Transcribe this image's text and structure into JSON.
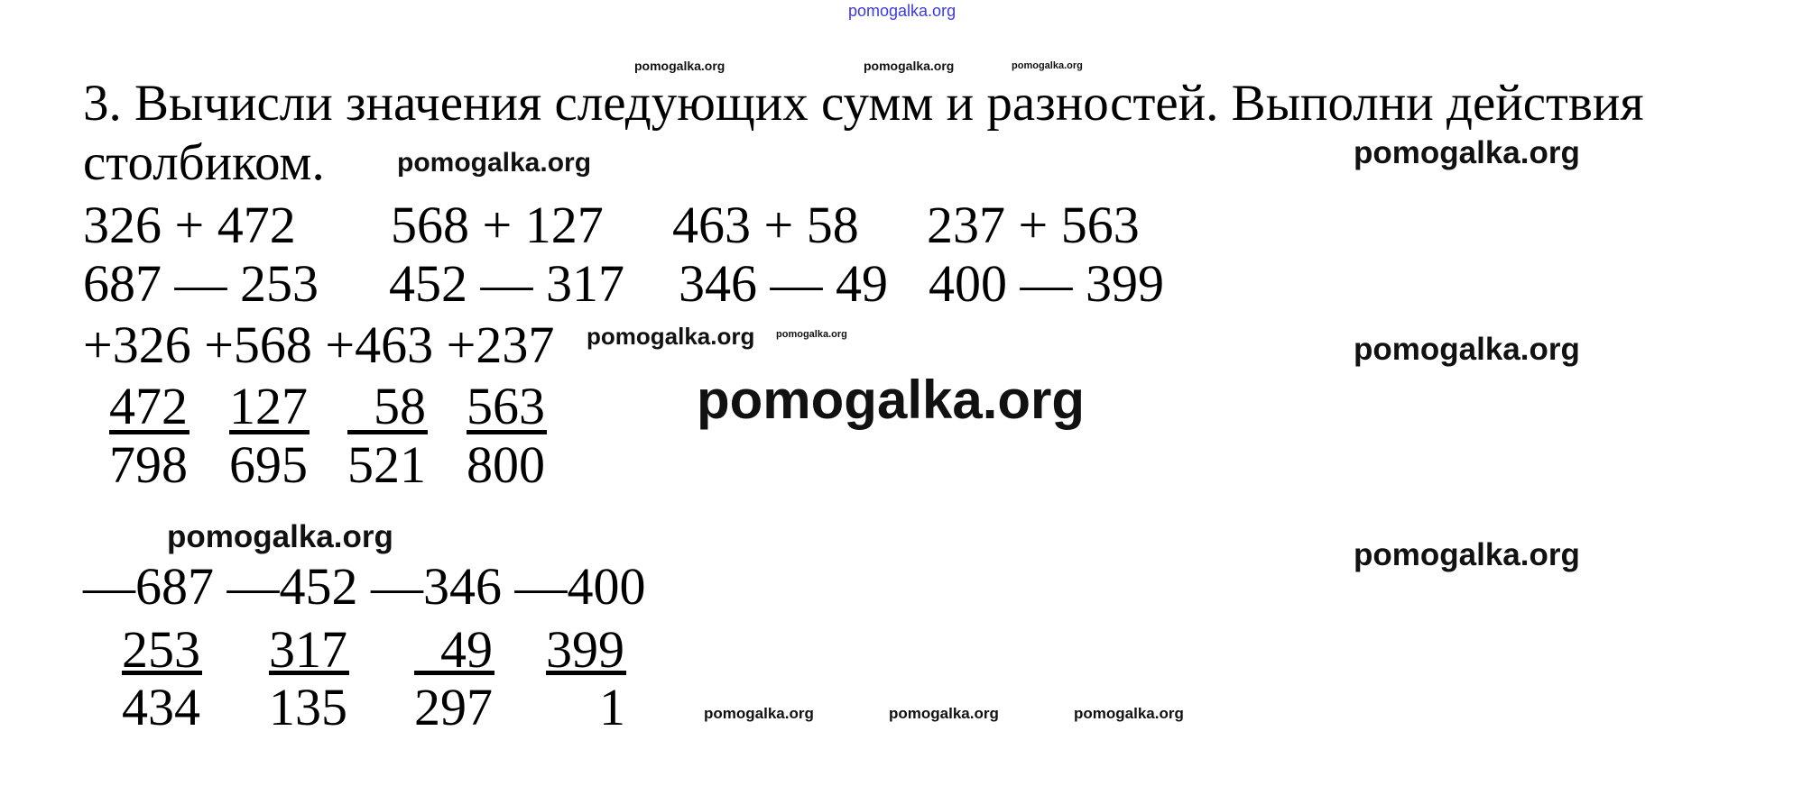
{
  "watermark": "pomogalka.org",
  "watermark_top": "pomogalka.org",
  "task": {
    "title_line1": "3. Вычисли значения следующих сумм и разностей. Выполни действия",
    "title_line2": "столбиком."
  },
  "expressions": {
    "sums": [
      "326 + 472",
      "568 + 127",
      "463 + 58",
      "237 + 563"
    ],
    "differences": [
      "687 — 253",
      "452 — 317",
      "346 — 49",
      "400 — 399"
    ]
  },
  "column_addition": {
    "header": "+326 +568 +463 +237",
    "addends": [
      "472",
      "127",
      "58",
      "563"
    ],
    "results": [
      "798",
      "695",
      "521",
      "800"
    ]
  },
  "column_subtraction": {
    "header": "—687 —452 —346 —400",
    "subtrahends": [
      "253",
      "317",
      "49",
      "399"
    ],
    "results": [
      "434",
      "135",
      "297",
      "1"
    ]
  }
}
